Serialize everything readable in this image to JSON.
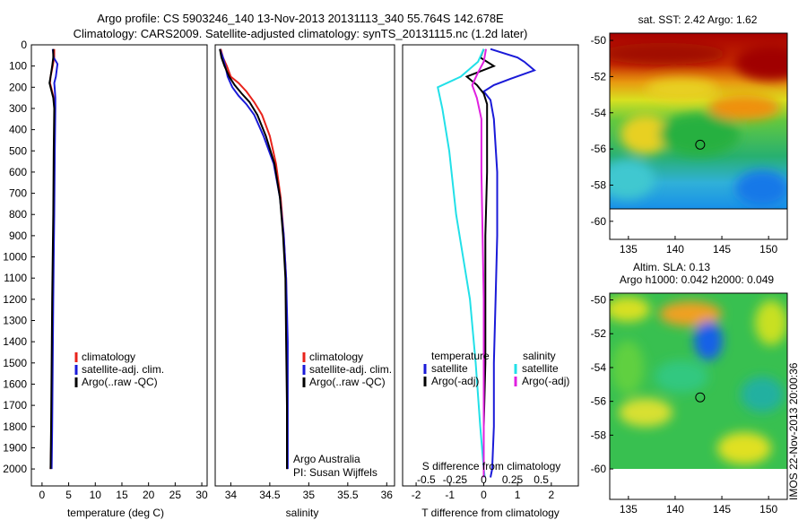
{
  "header": {
    "title_line1": "Argo profile: CS 5903246_140 13-Nov-2013 20131113_340 55.764S 142.678E",
    "title_line2": "Climatology: CARS2009. Satellite-adjusted climatology: synTS_20131115.nc (1.2d later)"
  },
  "colors": {
    "climatology": "#e8231b",
    "satellite": "#1a1ad8",
    "argo": "#000000",
    "sal_satellite": "#22e0e8",
    "sal_argo": "#e020e0"
  },
  "chart_data": [
    {
      "type": "line",
      "id": "temperature",
      "xlabel": "temperature (deg C)",
      "ylabel": "",
      "xlim": [
        -2,
        31
      ],
      "ylim": [
        2080,
        0
      ],
      "xticks": [
        0,
        5,
        10,
        15,
        20,
        25,
        30
      ],
      "yticks": [
        0,
        100,
        200,
        300,
        400,
        500,
        600,
        700,
        800,
        900,
        1000,
        1100,
        1200,
        1300,
        1400,
        1500,
        1600,
        1700,
        1800,
        1900,
        2000
      ],
      "legend": [
        "climatology",
        "satellite-adj. clim.",
        "Argo(..raw -QC)"
      ],
      "series": [
        {
          "name": "climatology",
          "color": "#e8231b",
          "x": [
            2.3,
            2.3,
            2.0,
            1.6,
            1.5,
            1.8,
            2.2,
            2.4,
            2.3,
            2.2,
            2.1,
            2.0,
            1.9,
            1.8,
            1.6
          ],
          "y": [
            20,
            60,
            100,
            150,
            180,
            210,
            250,
            300,
            500,
            800,
            1000,
            1200,
            1500,
            1800,
            2000
          ]
        },
        {
          "name": "satellite-adj. clim.",
          "color": "#1a1ad8",
          "x": [
            2.0,
            2.2,
            2.9,
            2.6,
            2.3,
            2.4,
            2.5,
            2.5,
            2.4,
            2.3,
            2.2,
            2.1,
            2.0,
            1.9,
            1.8
          ],
          "y": [
            20,
            60,
            90,
            150,
            180,
            210,
            250,
            300,
            500,
            800,
            1000,
            1200,
            1500,
            1800,
            2000
          ]
        },
        {
          "name": "Argo(..raw -QC)",
          "color": "#000000",
          "x": [
            2.1,
            2.1,
            1.9,
            1.6,
            1.4,
            1.7,
            2.1,
            2.3,
            2.2,
            2.1,
            2.0,
            1.9,
            1.8,
            1.7,
            1.6
          ],
          "y": [
            20,
            60,
            100,
            150,
            180,
            210,
            250,
            300,
            500,
            800,
            1000,
            1200,
            1500,
            1800,
            2000
          ]
        }
      ]
    },
    {
      "type": "line",
      "id": "salinity",
      "xlabel": "salinity",
      "ylabel": "",
      "xlim": [
        33.8,
        36.1
      ],
      "ylim": [
        2080,
        0
      ],
      "xticks": [
        34,
        34.5,
        35,
        35.5,
        36
      ],
      "xticklabels": [
        "34",
        "34.5",
        "35",
        "35.5",
        "36"
      ],
      "legend": [
        "climatology",
        "satellite-adj. clim.",
        "Argo(..raw -QC)"
      ],
      "annotations": [
        "Argo Australia",
        "PI: Susan Wijffels"
      ],
      "series": [
        {
          "name": "climatology",
          "color": "#e8231b",
          "x": [
            33.87,
            33.9,
            33.95,
            34.0,
            34.1,
            34.2,
            34.3,
            34.4,
            34.5,
            34.58,
            34.64,
            34.68,
            34.71,
            34.72,
            34.72,
            34.72
          ],
          "y": [
            20,
            60,
            100,
            150,
            180,
            220,
            270,
            330,
            430,
            560,
            720,
            900,
            1100,
            1400,
            1700,
            2000
          ]
        },
        {
          "name": "satellite-adj. clim.",
          "color": "#1a1ad8",
          "x": [
            33.86,
            33.9,
            33.93,
            33.96,
            34.02,
            34.1,
            34.2,
            34.3,
            34.42,
            34.55,
            34.63,
            34.68,
            34.71,
            34.73,
            34.73,
            34.73
          ],
          "y": [
            20,
            60,
            100,
            150,
            200,
            240,
            280,
            330,
            430,
            560,
            720,
            900,
            1100,
            1400,
            1700,
            2000
          ]
        },
        {
          "name": "Argo(..raw -QC)",
          "color": "#000000",
          "x": [
            33.86,
            33.88,
            33.92,
            33.98,
            34.05,
            34.14,
            34.24,
            34.34,
            34.45,
            34.56,
            34.63,
            34.67,
            34.7,
            34.71,
            34.72,
            34.72
          ],
          "y": [
            20,
            60,
            100,
            150,
            190,
            230,
            270,
            330,
            430,
            560,
            720,
            900,
            1100,
            1400,
            1700,
            2000
          ]
        }
      ]
    },
    {
      "type": "line",
      "id": "difference",
      "xlabel": "T difference from climatology",
      "xlabel_top": "S difference from climatology",
      "xlim": [
        -2.4,
        2.8
      ],
      "ylim": [
        2080,
        0
      ],
      "xticks": [
        -2,
        -1,
        0,
        1,
        2
      ],
      "sticks": [
        -0.5,
        -0.25,
        0,
        0.25,
        0.5
      ],
      "sticklabels": [
        "-0.5",
        "-0.25",
        "0",
        "0.25",
        "0.5"
      ],
      "legend_t_header": "temperature",
      "legend_s_header": "salinity",
      "legend_t": [
        "satellite",
        "Argo(-adj)"
      ],
      "legend_s": [
        "satellite",
        "Argo(-adj)"
      ],
      "series": [
        {
          "name": "satellite",
          "group": "temperature",
          "color": "#1a1ad8",
          "x": [
            0.2,
            1.0,
            1.2,
            1.5,
            0.8,
            0.3,
            0.0,
            0.2,
            0.3,
            0.4,
            0.4,
            0.35,
            0.3,
            0.3,
            0.25,
            0.2
          ],
          "y": [
            20,
            60,
            80,
            120,
            160,
            190,
            220,
            260,
            350,
            600,
            900,
            1200,
            1500,
            1800,
            2000,
            2040
          ]
        },
        {
          "name": "Argo(-adj)",
          "group": "temperature",
          "color": "#000000",
          "x": [
            0.0,
            -0.1,
            0.3,
            -0.5,
            -0.2,
            0.0,
            0.1,
            0.1,
            0.1,
            0.05,
            0.05,
            0.05,
            0.0,
            0.0,
            0.0
          ],
          "y": [
            20,
            60,
            100,
            150,
            190,
            230,
            280,
            400,
            600,
            900,
            1200,
            1500,
            1800,
            2000,
            2040
          ]
        },
        {
          "name": "satellite",
          "group": "salinity",
          "color": "#22e0e8",
          "x": [
            0.0,
            -0.05,
            -0.2,
            -0.4,
            -0.36,
            -0.3,
            -0.24,
            -0.18,
            -0.12,
            -0.07,
            -0.03,
            0.0,
            0.01
          ],
          "y": [
            20,
            80,
            150,
            200,
            300,
            500,
            800,
            1000,
            1200,
            1500,
            1800,
            2000,
            2040
          ]
        },
        {
          "name": "Argo(-adj)",
          "group": "salinity",
          "color": "#e020e0",
          "x": [
            0.02,
            0.0,
            -0.05,
            -0.1,
            -0.06,
            -0.02,
            -0.02,
            -0.01,
            0.0,
            0.0,
            0.0,
            0.0
          ],
          "y": [
            20,
            80,
            130,
            190,
            250,
            350,
            600,
            900,
            1200,
            1500,
            1800,
            2040
          ]
        }
      ]
    },
    {
      "type": "heatmap",
      "id": "sst-map",
      "title": "sat. SST: 2.42  Argo: 1.62",
      "xlim": [
        133,
        152
      ],
      "ylim": [
        -61,
        -49.6
      ],
      "xticks": [
        135,
        140,
        145,
        150
      ],
      "yticks": [
        -50,
        -52,
        -54,
        -56,
        -58,
        -60
      ],
      "argo_position": {
        "lon": 142.678,
        "lat": -55.764
      }
    },
    {
      "type": "heatmap",
      "id": "sla-map",
      "title": "Altim. SLA: 0.13",
      "subtitle": "Argo h1000: 0.042 h2000: 0.049",
      "xlim": [
        133,
        152
      ],
      "ylim": [
        -61.8,
        -49.6
      ],
      "xticks": [
        135,
        140,
        145,
        150
      ],
      "yticks": [
        -50,
        -52,
        -54,
        -56,
        -58,
        -60
      ],
      "argo_position": {
        "lon": 142.678,
        "lat": -55.764
      }
    }
  ],
  "footer": {
    "stamp": "IMOS 22-Nov-2013 20:00:36"
  }
}
